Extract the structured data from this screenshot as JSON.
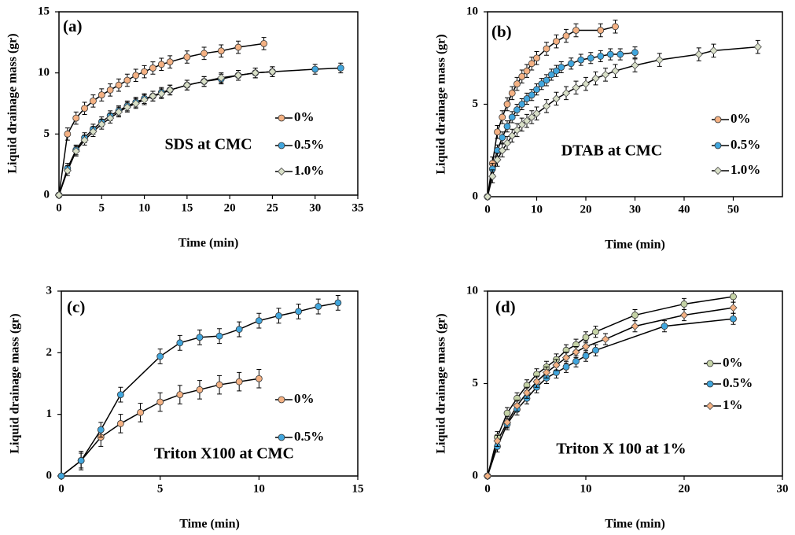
{
  "chart_data": [
    {
      "type": "line",
      "panel_label": "(a)",
      "annotation": "SDS at CMC",
      "x_label": "Time (min)",
      "y_label": "Liquid drainage mass (gr)",
      "xlim": [
        0,
        35
      ],
      "xticks": [
        0,
        5,
        10,
        15,
        20,
        25,
        30,
        35
      ],
      "ylim": [
        0,
        15
      ],
      "yticks": [
        0,
        5,
        10,
        15
      ],
      "series": [
        {
          "name": "0%",
          "color": "#f4b183",
          "marker": "circle",
          "error": 0.5,
          "x": [
            0,
            1,
            2,
            3,
            4,
            5,
            6,
            7,
            8,
            9,
            10,
            11,
            12,
            13,
            15,
            17,
            19,
            21,
            24
          ],
          "values": [
            0,
            5.0,
            6.3,
            7.1,
            7.7,
            8.2,
            8.6,
            9.0,
            9.4,
            9.8,
            10.1,
            10.4,
            10.7,
            10.9,
            11.3,
            11.6,
            11.8,
            12.1,
            12.4
          ]
        },
        {
          "name": "0.5%",
          "color": "#41a6dd",
          "marker": "circle",
          "error": 0.4,
          "x": [
            0,
            1,
            2,
            3,
            4,
            5,
            6,
            7,
            8,
            9,
            10,
            11,
            12,
            13,
            15,
            17,
            19,
            21,
            23,
            25,
            30,
            33
          ],
          "values": [
            0,
            2.2,
            3.7,
            4.7,
            5.4,
            6.0,
            6.5,
            6.9,
            7.3,
            7.6,
            7.9,
            8.1,
            8.4,
            8.6,
            9.0,
            9.3,
            9.5,
            9.8,
            10.0,
            10.1,
            10.3,
            10.4
          ]
        },
        {
          "name": "1.0%",
          "color": "#d9e0c8",
          "marker": "diamond",
          "error": 0.4,
          "x": [
            0,
            1,
            2,
            3,
            4,
            5,
            6,
            7,
            8,
            9,
            10,
            11,
            12,
            13,
            15,
            17,
            19,
            21,
            23,
            25
          ],
          "values": [
            0,
            2.0,
            3.6,
            4.5,
            5.2,
            5.8,
            6.3,
            6.8,
            7.2,
            7.5,
            7.8,
            8.1,
            8.3,
            8.6,
            9.0,
            9.3,
            9.6,
            9.8,
            10.0,
            10.1
          ]
        }
      ]
    },
    {
      "type": "line",
      "panel_label": "(b)",
      "annotation": "DTAB at CMC",
      "x_label": "Time (min)",
      "y_label": "Liquid drainage mass (gr)",
      "xlim": [
        0,
        60
      ],
      "xticks": [
        0,
        10,
        20,
        30,
        40,
        50
      ],
      "ylim": [
        0,
        10
      ],
      "yticks": [
        0,
        5,
        10
      ],
      "series": [
        {
          "name": "0%",
          "color": "#f4b183",
          "marker": "circle",
          "error": 0.35,
          "x": [
            0,
            1,
            2,
            3,
            4,
            5,
            6,
            7,
            8,
            9,
            10,
            12,
            14,
            16,
            18,
            23,
            26
          ],
          "values": [
            0,
            1.8,
            3.5,
            4.3,
            5.0,
            5.6,
            6.1,
            6.5,
            6.8,
            7.2,
            7.5,
            8.0,
            8.4,
            8.7,
            9.0,
            9.0,
            9.2
          ]
        },
        {
          "name": "0.5%",
          "color": "#41a6dd",
          "marker": "circle",
          "error": 0.3,
          "x": [
            0,
            1,
            2,
            3,
            4,
            5,
            6,
            7,
            8,
            9,
            10,
            11,
            12,
            13,
            14,
            15,
            17,
            19,
            21,
            23,
            25,
            27,
            30
          ],
          "values": [
            0,
            1.5,
            2.5,
            3.2,
            3.8,
            4.3,
            4.7,
            5.0,
            5.3,
            5.5,
            5.8,
            6.1,
            6.3,
            6.6,
            6.8,
            7.0,
            7.2,
            7.4,
            7.5,
            7.6,
            7.7,
            7.7,
            7.8
          ]
        },
        {
          "name": "1.0%",
          "color": "#d9e0c8",
          "marker": "diamond",
          "error": 0.35,
          "x": [
            0,
            1,
            2,
            3,
            4,
            5,
            6,
            7,
            8,
            9,
            10,
            12,
            14,
            16,
            18,
            20,
            22,
            24,
            26,
            30,
            35,
            43,
            46,
            55
          ],
          "values": [
            0,
            1.1,
            2.0,
            2.5,
            2.9,
            3.3,
            3.6,
            3.9,
            4.1,
            4.3,
            4.5,
            4.9,
            5.3,
            5.6,
            5.9,
            6.1,
            6.4,
            6.6,
            6.8,
            7.1,
            7.4,
            7.7,
            7.9,
            8.1
          ]
        }
      ]
    },
    {
      "type": "line",
      "panel_label": "(c)",
      "annotation": "Triton X100 at CMC",
      "x_label": "Time (min)",
      "y_label": "Liquid drainage mass (gr)",
      "xlim": [
        0,
        15
      ],
      "xticks": [
        0,
        5,
        10,
        15
      ],
      "ylim": [
        0,
        3
      ],
      "yticks": [
        0,
        1,
        2,
        3
      ],
      "series": [
        {
          "name": "0%",
          "color": "#f4b183",
          "marker": "circle",
          "error": 0.15,
          "x": [
            0,
            1,
            2,
            3,
            4,
            5,
            6,
            7,
            8,
            9,
            10
          ],
          "values": [
            0,
            0.25,
            0.63,
            0.85,
            1.03,
            1.2,
            1.32,
            1.4,
            1.48,
            1.53,
            1.58
          ]
        },
        {
          "name": "0.5%",
          "color": "#41a6dd",
          "marker": "circle",
          "error": 0.12,
          "x": [
            0,
            1,
            2,
            3,
            5,
            6,
            7,
            8,
            9,
            10,
            11,
            12,
            13,
            14
          ],
          "values": [
            0,
            0.25,
            0.75,
            1.32,
            1.94,
            2.16,
            2.25,
            2.27,
            2.38,
            2.52,
            2.6,
            2.67,
            2.75,
            2.81
          ]
        }
      ]
    },
    {
      "type": "line",
      "panel_label": "(d)",
      "annotation": "Triton X 100 at 1%",
      "x_label": "Time (min)",
      "y_label": "Liquid drainage mass (gr)",
      "xlim": [
        0,
        30
      ],
      "xticks": [
        0,
        10,
        20,
        30
      ],
      "ylim": [
        0,
        10
      ],
      "yticks": [
        0,
        5,
        10
      ],
      "series": [
        {
          "name": "0%",
          "color": "#c5d3a6",
          "marker": "circle",
          "error": 0.3,
          "x": [
            0,
            1,
            2,
            3,
            4,
            5,
            6,
            7,
            8,
            9,
            10,
            11,
            15,
            20,
            25
          ],
          "values": [
            0,
            2.1,
            3.4,
            4.2,
            4.9,
            5.5,
            5.9,
            6.3,
            6.8,
            7.1,
            7.5,
            7.8,
            8.7,
            9.3,
            9.7
          ]
        },
        {
          "name": "0.5%",
          "color": "#41a6dd",
          "marker": "circle",
          "error": 0.3,
          "x": [
            0,
            1,
            2,
            3,
            4,
            5,
            6,
            7,
            8,
            9,
            10,
            11,
            18,
            25
          ],
          "values": [
            0,
            1.6,
            2.8,
            3.6,
            4.2,
            4.8,
            5.3,
            5.6,
            5.9,
            6.2,
            6.5,
            6.8,
            8.1,
            8.5
          ]
        },
        {
          "name": "1%",
          "color": "#f4b183",
          "marker": "diamond",
          "error": 0.3,
          "x": [
            0,
            1,
            2,
            3,
            4,
            5,
            6,
            7,
            8,
            9,
            10,
            12,
            15,
            20,
            25
          ],
          "values": [
            0,
            1.9,
            2.9,
            3.8,
            4.5,
            5.1,
            5.6,
            6.0,
            6.4,
            6.7,
            7.0,
            7.4,
            8.1,
            8.7,
            9.1
          ]
        }
      ]
    }
  ]
}
